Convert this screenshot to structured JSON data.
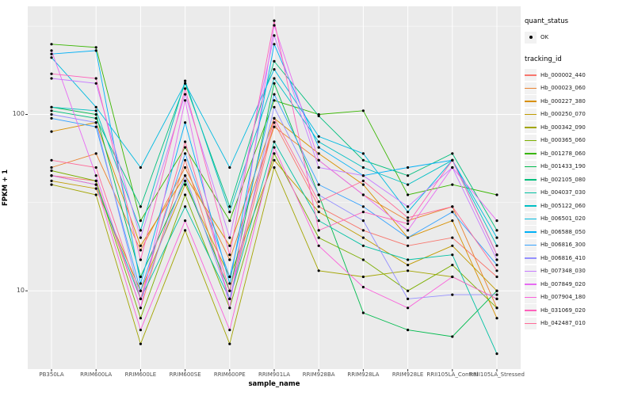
{
  "figure": {
    "background": "#FFFFFF",
    "panel_background": "#EBEBEB",
    "grid_color": "#FFFFFF",
    "tick_color": "#333333",
    "tick_label_color": "#4D4D4D"
  },
  "legend": {
    "quant_status_title": "quant_status",
    "quant_status_value": "OK",
    "quant_status_symbol": "black-point",
    "tracking_id_title": "tracking_id"
  },
  "chart_data": {
    "type": "line",
    "title": "",
    "xlabel": "sample_name",
    "ylabel": "FPKM + 1",
    "y_scale": "log10",
    "ylim": [
      3.6,
      410
    ],
    "y_ticks": [
      100,
      10
    ],
    "y_minor_gridlines": [
      31.62,
      316.2
    ],
    "grid": true,
    "legend_position": "right",
    "point_shape": "filled-circle",
    "point_color": "#000000",
    "categories": [
      "PB350LA",
      "RRIM600LA",
      "RRIM600LE",
      "RRIM600SE",
      "RRIM600PE",
      "RRIM901LA",
      "RRIM928BA",
      "RRIM928LA",
      "RRIM928LE",
      "RRII105LA_Control",
      "RRII105LA_Stressed"
    ],
    "series": [
      {
        "name": "Hb_000002_440",
        "color": "#F8766D",
        "values": [
          45,
          42,
          8,
          55,
          9,
          90,
          30,
          22,
          18,
          20,
          12
        ]
      },
      {
        "name": "Hb_000023_060",
        "color": "#EA8331",
        "values": [
          50,
          60,
          17,
          50,
          15,
          85,
          55,
          35,
          25,
          30,
          8
        ]
      },
      {
        "name": "Hb_000227_380",
        "color": "#D89000",
        "values": [
          80,
          90,
          18,
          45,
          18,
          95,
          60,
          40,
          20,
          25,
          7
        ]
      },
      {
        "name": "Hb_000250_070",
        "color": "#C09B00",
        "values": [
          42,
          38,
          10,
          40,
          12,
          55,
          28,
          20,
          14,
          18,
          10
        ]
      },
      {
        "name": "Hb_000342_090",
        "color": "#A3A500",
        "values": [
          40,
          35,
          5,
          22,
          5,
          50,
          13,
          12,
          13,
          12,
          9
        ]
      },
      {
        "name": "Hb_000365_060",
        "color": "#7CAE00",
        "values": [
          48,
          42,
          7,
          35,
          8,
          60,
          20,
          15,
          10,
          14,
          8
        ]
      },
      {
        "name": "Hb_001278_060",
        "color": "#39B600",
        "values": [
          250,
          240,
          25,
          65,
          25,
          120,
          100,
          105,
          35,
          40,
          35
        ]
      },
      {
        "name": "Hb_001433_190",
        "color": "#00BB4E",
        "values": [
          110,
          100,
          12,
          42,
          10,
          150,
          35,
          7.5,
          6,
          5.5,
          10
        ]
      },
      {
        "name": "Hb_002105_080",
        "color": "#00BF7D",
        "values": [
          105,
          95,
          30,
          150,
          30,
          200,
          98,
          55,
          45,
          60,
          22
        ]
      },
      {
        "name": "Hb_004037_030",
        "color": "#00C1A3",
        "values": [
          45,
          40,
          9,
          30,
          9,
          70,
          25,
          18,
          15,
          16,
          4.4
        ]
      },
      {
        "name": "Hb_005122_060",
        "color": "#00BFC4",
        "values": [
          110,
          105,
          22,
          155,
          28,
          160,
          70,
          50,
          40,
          55,
          18
        ]
      },
      {
        "name": "Hb_006501_020",
        "color": "#00BAE0",
        "values": [
          210,
          110,
          50,
          150,
          50,
          180,
          75,
          60,
          28,
          55,
          20
        ]
      },
      {
        "name": "Hb_006588_050",
        "color": "#00B0F6",
        "values": [
          220,
          230,
          11,
          90,
          11,
          250,
          65,
          45,
          50,
          55,
          16
        ]
      },
      {
        "name": "Hb_006816_300",
        "color": "#35A2FF",
        "values": [
          95,
          85,
          10,
          60,
          12,
          130,
          40,
          30,
          20,
          28,
          14
        ]
      },
      {
        "name": "Hb_006816_410",
        "color": "#9590FF",
        "values": [
          100,
          90,
          9,
          45,
          9,
          110,
          35,
          25,
          9,
          9.5,
          9.5
        ]
      },
      {
        "name": "Hb_007348_030",
        "color": "#C77CFF",
        "values": [
          160,
          150,
          20,
          130,
          20,
          280,
          50,
          45,
          30,
          50,
          15
        ]
      },
      {
        "name": "Hb_007849_020",
        "color": "#E76BF3",
        "values": [
          230,
          45,
          8,
          120,
          8,
          320,
          55,
          35,
          22,
          50,
          25
        ]
      },
      {
        "name": "Hb_007904_180",
        "color": "#FA62DB",
        "values": [
          45,
          40,
          6,
          25,
          6,
          65,
          18,
          10.5,
          8,
          12,
          9
        ]
      },
      {
        "name": "Hb_031069_020",
        "color": "#FF62BC",
        "values": [
          170,
          160,
          15,
          140,
          16,
          340,
          22,
          28,
          24,
          55,
          16
        ]
      },
      {
        "name": "Hb_042487_010",
        "color": "#FF6A98",
        "values": [
          55,
          50,
          9,
          70,
          10,
          95,
          32,
          42,
          26,
          30,
          13
        ]
      }
    ]
  }
}
